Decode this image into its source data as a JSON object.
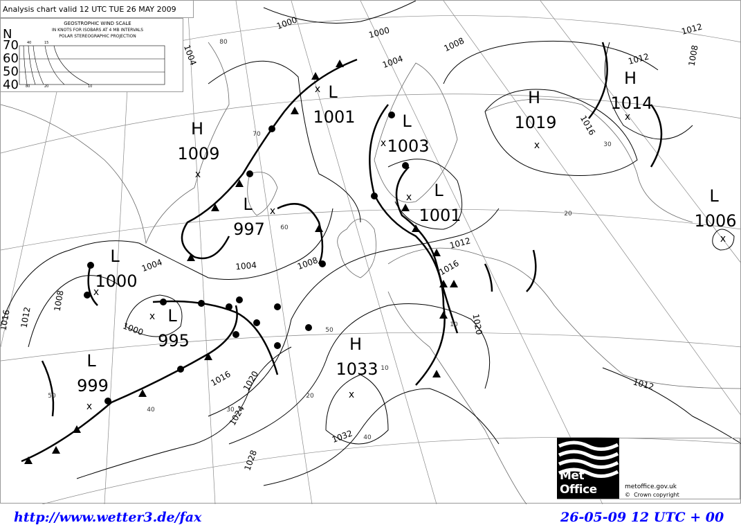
{
  "header": {
    "title": "Analysis chart valid 12 UTC TUE 26 MAY 2009"
  },
  "wind_scale": {
    "title": "GEOSTROPHIC WIND SCALE",
    "subtitle": "IN KNOTS FOR ISOBARS AT  4 MB INTERVALS",
    "projection": "POLAR STEREOGRAPHIC PROJECTION",
    "north": "N",
    "latitudes": [
      "70",
      "60",
      "50",
      "40"
    ],
    "top_labels": [
      "40",
      "15"
    ],
    "bottom_labels": [
      "80",
      "20",
      "10"
    ]
  },
  "pressure_centres": [
    {
      "type": "L",
      "value": "1001"
    },
    {
      "type": "H",
      "value": "1009"
    },
    {
      "type": "L",
      "value": "1003"
    },
    {
      "type": "H",
      "value": "1019"
    },
    {
      "type": "H",
      "value": "1014"
    },
    {
      "type": "L",
      "value": "997"
    },
    {
      "type": "L",
      "value": "1001"
    },
    {
      "type": "L",
      "value": "1006"
    },
    {
      "type": "L",
      "value": "1000"
    },
    {
      "type": "L",
      "value": "995"
    },
    {
      "type": "L",
      "value": "999"
    },
    {
      "type": "H",
      "value": "1033"
    }
  ],
  "isobar_labels": [
    "1000",
    "1000",
    "1004",
    "1008",
    "1012",
    "1008",
    "1012",
    "1016",
    "1004",
    "1004",
    "1008",
    "1012",
    "1016",
    "1000",
    "1004",
    "1008",
    "1012",
    "1016",
    "1020",
    "1016",
    "1020",
    "1024",
    "1028",
    "1032",
    "1012"
  ],
  "grid_labels": [
    "10",
    "20",
    "30",
    "40",
    "50",
    "20",
    "10",
    "30",
    "40",
    "50",
    "60",
    "70",
    "80"
  ],
  "branding": {
    "logo": "Met Office",
    "website": "metoffice.gov.uk",
    "copyright": "Crown copyright",
    "copyright_symbol": "©"
  },
  "footer": {
    "source_url": "http://www.wetter3.de/fax",
    "run": "26-05-09 12 UTC + 00"
  },
  "colors": {
    "footer_text": "#0000ff",
    "lines": "#000000"
  }
}
